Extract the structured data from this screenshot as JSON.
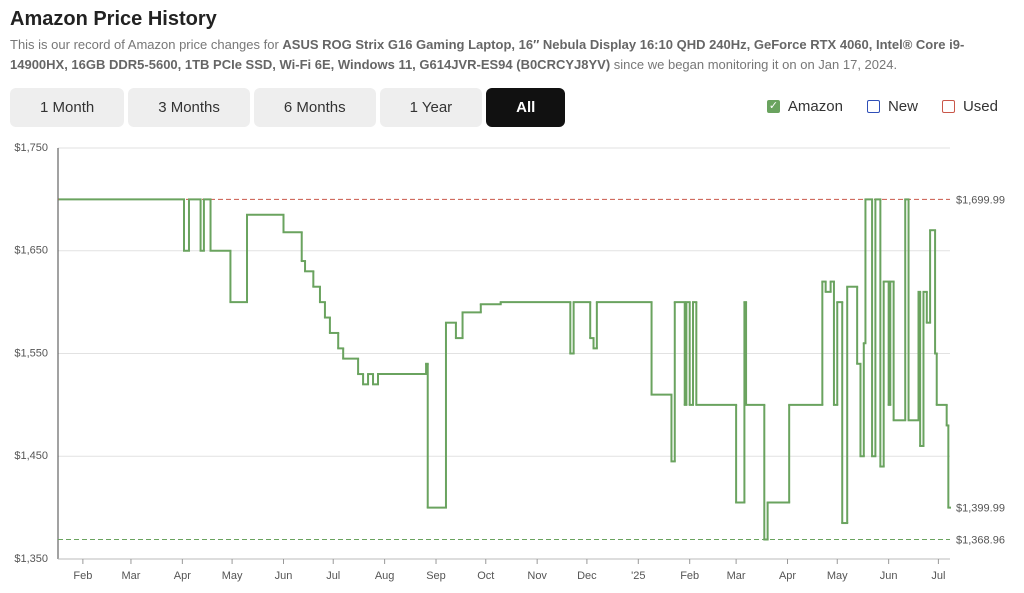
{
  "header": {
    "title": "Amazon Price History",
    "description": [
      "This is our record of Amazon price changes for ",
      "ASUS ROG Strix G16 Gaming Laptop, 16″ Nebula Display 16:10 QHD 240Hz, GeForce RTX 4060, Intel® Core i9-14900HX, 16GB DDR5-5600, 1TB PCIe SSD, Wi-Fi 6E, Windows 11, G614JVR-ES94 (B0CRCYJ8YV)",
      " since we began monitoring it on on Jan 17, 2024."
    ]
  },
  "ranges": [
    {
      "label": "1 Month",
      "active": false
    },
    {
      "label": "3 Months",
      "active": false
    },
    {
      "label": "6 Months",
      "active": false
    },
    {
      "label": "1 Year",
      "active": false
    },
    {
      "label": "All",
      "active": true
    }
  ],
  "chart_data": {
    "type": "step",
    "legend": [
      {
        "label": "Amazon",
        "color": "#6aa35f",
        "checked": true
      },
      {
        "label": "New",
        "color": "#2f4fb8",
        "checked": false
      },
      {
        "label": "Used",
        "color": "#c9574a",
        "checked": false
      }
    ],
    "series": [
      {
        "color": "#6aa35f",
        "x": [
          17,
          92,
          95,
          102,
          104,
          108,
          120,
          130,
          152,
          163,
          165,
          170,
          174,
          177,
          180,
          185,
          188,
          197,
          200,
          203,
          206,
          209,
          238,
          239,
          250,
          256,
          260,
          271,
          283,
          325,
          327,
          337,
          339,
          341,
          374,
          386,
          388,
          394,
          395,
          397,
          399,
          401,
          425,
          430,
          431,
          442,
          444,
          457,
          477,
          479,
          482,
          484,
          486,
          489,
          492,
          498,
          500,
          502,
          503,
          507,
          509,
          512,
          514,
          517,
          518,
          520,
          527,
          529,
          535,
          536,
          538,
          540,
          542,
          545,
          546,
          552,
          553
        ],
        "values": [
          1699.99,
          1649.99,
          1699.99,
          1649.99,
          1699.99,
          1649.99,
          1599.99,
          1684.99,
          1667.99,
          1639.99,
          1629.99,
          1614.99,
          1599.99,
          1584.99,
          1569.99,
          1554.99,
          1544.99,
          1529.99,
          1519.99,
          1529.99,
          1519.99,
          1529.99,
          1539.99,
          1399.99,
          1579.99,
          1564.99,
          1589.99,
          1597.99,
          1599.99,
          1549.99,
          1599.99,
          1564.99,
          1554.99,
          1599.99,
          1509.99,
          1444.99,
          1599.99,
          1499.99,
          1599.99,
          1499.99,
          1599.99,
          1499.99,
          1404.99,
          1599.99,
          1499.99,
          1368.96,
          1404.99,
          1499.99,
          1619.99,
          1609.99,
          1619.99,
          1499.99,
          1599.99,
          1384.99,
          1614.99,
          1539.99,
          1449.99,
          1559.99,
          1699.99,
          1449.99,
          1699.99,
          1439.99,
          1619.99,
          1499.99,
          1619.99,
          1484.99,
          1699.99,
          1484.99,
          1609.99,
          1459.99,
          1609.99,
          1579.99,
          1669.99,
          1549.99,
          1499.99,
          1479.99,
          1399.99
        ]
      }
    ],
    "reference_lines": [
      {
        "value": 1699.99,
        "label": "$1,699.99",
        "color": "#c9574a"
      },
      {
        "value": 1368.96,
        "label": "$1,368.96",
        "color": "#6aa35f"
      }
    ],
    "current": {
      "value": 1399.99,
      "label": "$1,399.99",
      "color": "#6aa35f"
    },
    "xlim": [
      16,
      554
    ],
    "xticks": [
      {
        "value": 31,
        "label": "Feb"
      },
      {
        "value": 60,
        "label": "Mar"
      },
      {
        "value": 91,
        "label": "Apr"
      },
      {
        "value": 121,
        "label": "May"
      },
      {
        "value": 152,
        "label": "Jun"
      },
      {
        "value": 182,
        "label": "Jul"
      },
      {
        "value": 213,
        "label": "Aug"
      },
      {
        "value": 244,
        "label": "Sep"
      },
      {
        "value": 274,
        "label": "Oct"
      },
      {
        "value": 305,
        "label": "Nov"
      },
      {
        "value": 335,
        "label": "Dec"
      },
      {
        "value": 366,
        "label": "'25"
      },
      {
        "value": 397,
        "label": "Feb"
      },
      {
        "value": 425,
        "label": "Mar"
      },
      {
        "value": 456,
        "label": "Apr"
      },
      {
        "value": 486,
        "label": "May"
      },
      {
        "value": 517,
        "label": "Jun"
      },
      {
        "value": 547,
        "label": "Jul"
      }
    ],
    "ylim": [
      1350,
      1750
    ],
    "yticks": [
      {
        "value": 1350,
        "label": "$1,350"
      },
      {
        "value": 1450,
        "label": "$1,450"
      },
      {
        "value": 1550,
        "label": "$1,550"
      },
      {
        "value": 1650,
        "label": "$1,650"
      },
      {
        "value": 1750,
        "label": "$1,750"
      }
    ],
    "grid": true
  }
}
